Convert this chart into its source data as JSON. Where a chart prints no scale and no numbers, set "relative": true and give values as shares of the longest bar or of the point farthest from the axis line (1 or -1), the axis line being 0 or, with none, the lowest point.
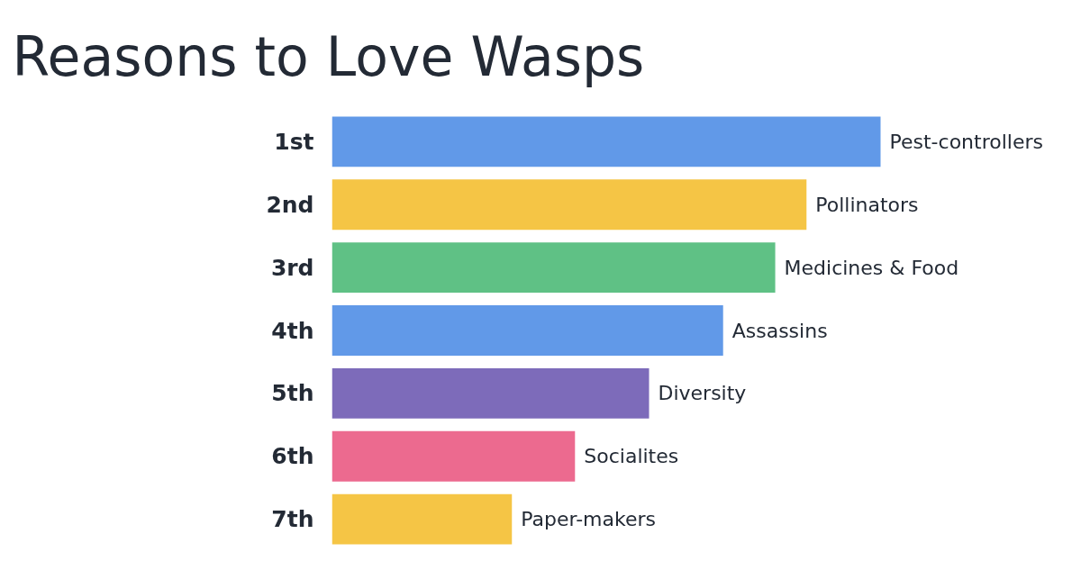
{
  "chart_data": {
    "type": "bar",
    "orientation": "horizontal",
    "relative": true,
    "title": "Reasons to Love Wasps",
    "categories": [
      "1st",
      "2nd",
      "3rd",
      "4th",
      "5th",
      "6th",
      "7th"
    ],
    "values": [
      1,
      0.865,
      0.808,
      0.713,
      0.578,
      0.443,
      0.328
    ],
    "colors": [
      "#6199e8",
      "#f5c545",
      "#5fc185",
      "#6199e8",
      "#7d6bba",
      "#ec6a8f",
      "#f5c545"
    ],
    "annotations": [
      {
        "text": "Pest-controllers",
        "x": 1,
        "y": "1st"
      },
      {
        "text": "Pollinators",
        "x": 0.865,
        "y": "2nd"
      },
      {
        "text": "Medicines & Food",
        "x": 0.808,
        "y": "3rd"
      },
      {
        "text": "Assassins",
        "x": 0.713,
        "y": "4th"
      },
      {
        "text": "Diversity",
        "x": 0.578,
        "y": "5th"
      },
      {
        "text": "Socialites",
        "x": 0.443,
        "y": "6th"
      },
      {
        "text": "Paper-makers",
        "x": 0.328,
        "y": "7th"
      }
    ],
    "grid": false
  }
}
